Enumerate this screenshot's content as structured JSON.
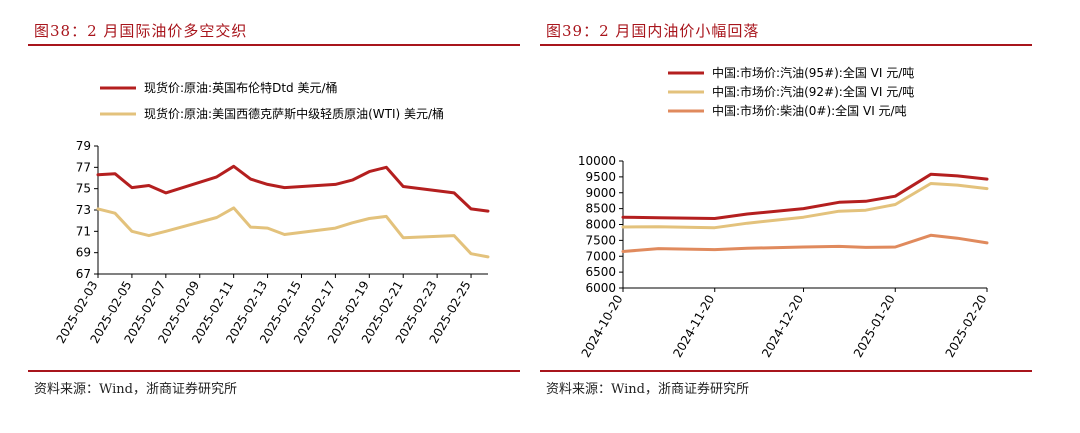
{
  "left": {
    "figure_title": "图38：2 月国际油价多空交织",
    "source": "资料来源：Wind，浙商证券研究所"
  },
  "right": {
    "figure_title": "图39：2 月国内油价小幅回落",
    "source": "资料来源：Wind，浙商证券研究所"
  },
  "chart_data": [
    {
      "type": "line",
      "ylim": [
        67,
        79
      ],
      "yticks": [
        67,
        69,
        71,
        73,
        75,
        77,
        79
      ],
      "xtick_labels": [
        "2025-02-03",
        "2025-02-05",
        "2025-02-07",
        "2025-02-09",
        "2025-02-11",
        "2025-02-13",
        "2025-02-15",
        "2025-02-17",
        "2025-02-19",
        "2025-02-21",
        "2025-02-23",
        "2025-02-25"
      ],
      "x_start": "2025-02-03",
      "x_end": "2025-02-26",
      "legend_position": "top-left",
      "grid": false,
      "series": [
        {
          "name": "现货价:原油:英国布伦特Dtd 美元/桶",
          "color": "#b41f1f",
          "x": [
            "2025-02-03",
            "2025-02-04",
            "2025-02-05",
            "2025-02-06",
            "2025-02-07",
            "2025-02-10",
            "2025-02-11",
            "2025-02-12",
            "2025-02-13",
            "2025-02-14",
            "2025-02-17",
            "2025-02-18",
            "2025-02-19",
            "2025-02-20",
            "2025-02-21",
            "2025-02-24",
            "2025-02-25",
            "2025-02-26"
          ],
          "values": [
            76.3,
            76.4,
            75.1,
            75.3,
            74.6,
            76.1,
            77.1,
            75.9,
            75.4,
            75.1,
            75.4,
            75.8,
            76.6,
            77.0,
            75.2,
            74.6,
            73.1,
            72.9
          ]
        },
        {
          "name": "现货价:原油:美国西德克萨斯中级轻质原油(WTI) 美元/桶",
          "color": "#e3c27c",
          "x": [
            "2025-02-03",
            "2025-02-04",
            "2025-02-05",
            "2025-02-06",
            "2025-02-07",
            "2025-02-10",
            "2025-02-11",
            "2025-02-12",
            "2025-02-13",
            "2025-02-14",
            "2025-02-17",
            "2025-02-18",
            "2025-02-19",
            "2025-02-20",
            "2025-02-21",
            "2025-02-24",
            "2025-02-25",
            "2025-02-26"
          ],
          "values": [
            73.1,
            72.7,
            71.0,
            70.6,
            71.0,
            72.3,
            73.2,
            71.4,
            71.3,
            70.7,
            71.3,
            71.8,
            72.2,
            72.4,
            70.4,
            70.6,
            68.9,
            68.6
          ]
        }
      ]
    },
    {
      "type": "line",
      "ylim": [
        6000,
        10000
      ],
      "yticks": [
        6000,
        6500,
        7000,
        7500,
        8000,
        8500,
        9000,
        9500,
        10000
      ],
      "xtick_labels": [
        "2024-10-20",
        "2024-11-20",
        "2024-12-20",
        "2025-01-20",
        "2025-02-20"
      ],
      "x_start": "2024-10-20",
      "x_end": "2025-02-20",
      "legend_position": "top-left",
      "grid": false,
      "series": [
        {
          "name": "中国:市场价:汽油(95#):全国 VI 元/吨",
          "color": "#b41f1f",
          "x": [
            "2024-10-20",
            "2024-11-01",
            "2024-11-20",
            "2024-12-01",
            "2024-12-20",
            "2025-01-01",
            "2025-01-10",
            "2025-01-20",
            "2025-02-01",
            "2025-02-10",
            "2025-02-20"
          ],
          "values": [
            8230,
            8210,
            8190,
            8330,
            8500,
            8700,
            8730,
            8890,
            9580,
            9530,
            9430
          ]
        },
        {
          "name": "中国:市场价:汽油(92#):全国 VI 元/吨",
          "color": "#e3c27c",
          "x": [
            "2024-10-20",
            "2024-11-01",
            "2024-11-20",
            "2024-12-01",
            "2024-12-20",
            "2025-01-01",
            "2025-01-10",
            "2025-01-20",
            "2025-02-01",
            "2025-02-10",
            "2025-02-20"
          ],
          "values": [
            7920,
            7930,
            7900,
            8040,
            8230,
            8420,
            8450,
            8630,
            9290,
            9240,
            9130
          ]
        },
        {
          "name": "中国:市场价:柴油(0#):全国 VI 元/吨",
          "color": "#e08a5d",
          "x": [
            "2024-10-20",
            "2024-11-01",
            "2024-11-20",
            "2024-12-01",
            "2024-12-20",
            "2025-01-01",
            "2025-01-10",
            "2025-01-20",
            "2025-02-01",
            "2025-02-10",
            "2025-02-20"
          ],
          "values": [
            7150,
            7240,
            7210,
            7250,
            7290,
            7310,
            7280,
            7290,
            7660,
            7570,
            7420
          ]
        }
      ]
    }
  ]
}
